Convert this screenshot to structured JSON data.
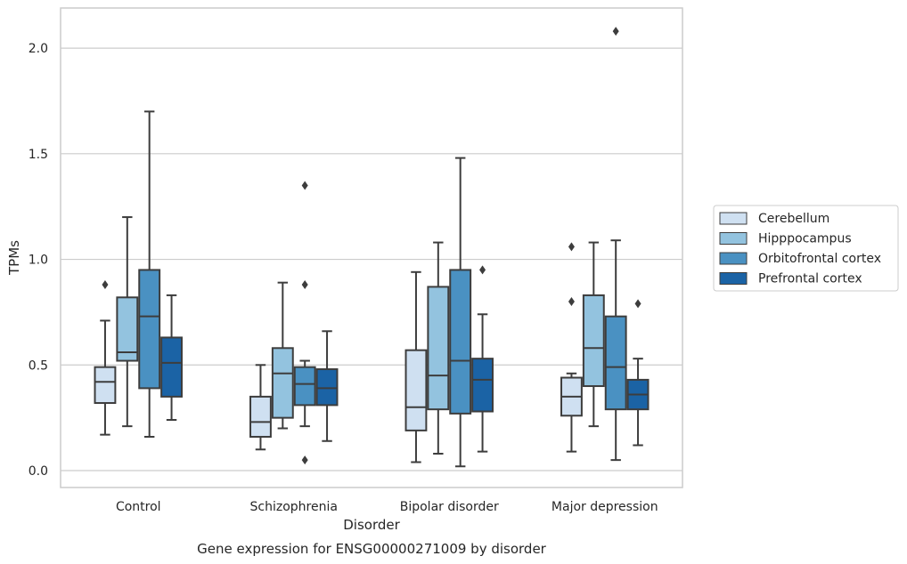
{
  "chart_data": {
    "type": "box",
    "categories": [
      "Control",
      "Schizophrenia",
      "Bipolar disorder",
      "Major depression"
    ],
    "xlabel": "Disorder",
    "ylabel": "TPMs",
    "caption": "Gene expression for ENSG00000271009 by disorder",
    "ylim": [
      -0.08,
      2.19
    ],
    "yticks": [
      0.0,
      0.5,
      1.0,
      1.5,
      2.0
    ],
    "ytick_labels": [
      "0.0",
      "0.5",
      "1.0",
      "1.5",
      "2.0"
    ],
    "grid": "horizontal",
    "legend_position": "right",
    "series": [
      {
        "name": "Cerebellum",
        "color": "#cfe0f1",
        "boxes": [
          {
            "min": 0.17,
            "q1": 0.32,
            "median": 0.42,
            "q3": 0.49,
            "max": 0.71,
            "outliers": [
              0.88
            ]
          },
          {
            "min": 0.1,
            "q1": 0.16,
            "median": 0.23,
            "q3": 0.35,
            "max": 0.5,
            "outliers": []
          },
          {
            "min": 0.04,
            "q1": 0.19,
            "median": 0.3,
            "q3": 0.57,
            "max": 0.94,
            "outliers": []
          },
          {
            "min": 0.09,
            "q1": 0.26,
            "median": 0.35,
            "q3": 0.44,
            "max": 0.46,
            "outliers": [
              0.8,
              1.06
            ]
          }
        ]
      },
      {
        "name": "Hipppocampus",
        "color": "#93c3df",
        "boxes": [
          {
            "min": 0.21,
            "q1": 0.52,
            "median": 0.56,
            "q3": 0.82,
            "max": 1.2,
            "outliers": []
          },
          {
            "min": 0.2,
            "q1": 0.25,
            "median": 0.46,
            "q3": 0.58,
            "max": 0.89,
            "outliers": []
          },
          {
            "min": 0.08,
            "q1": 0.29,
            "median": 0.45,
            "q3": 0.87,
            "max": 1.08,
            "outliers": []
          },
          {
            "min": 0.21,
            "q1": 0.4,
            "median": 0.58,
            "q3": 0.83,
            "max": 1.08,
            "outliers": []
          }
        ]
      },
      {
        "name": "Orbitofrontal cortex",
        "color": "#4a91c2",
        "boxes": [
          {
            "min": 0.16,
            "q1": 0.39,
            "median": 0.73,
            "q3": 0.95,
            "max": 1.7,
            "outliers": []
          },
          {
            "min": 0.21,
            "q1": 0.31,
            "median": 0.41,
            "q3": 0.49,
            "max": 0.52,
            "outliers": [
              0.05,
              0.88,
              1.35
            ]
          },
          {
            "min": 0.02,
            "q1": 0.27,
            "median": 0.52,
            "q3": 0.95,
            "max": 1.48,
            "outliers": []
          },
          {
            "min": 0.05,
            "q1": 0.29,
            "median": 0.49,
            "q3": 0.73,
            "max": 1.09,
            "outliers": [
              2.08
            ]
          }
        ]
      },
      {
        "name": "Prefrontal cortex",
        "color": "#1b63a5",
        "boxes": [
          {
            "min": 0.24,
            "q1": 0.35,
            "median": 0.51,
            "q3": 0.63,
            "max": 0.83,
            "outliers": []
          },
          {
            "min": 0.14,
            "q1": 0.31,
            "median": 0.39,
            "q3": 0.48,
            "max": 0.66,
            "outliers": []
          },
          {
            "min": 0.09,
            "q1": 0.28,
            "median": 0.43,
            "q3": 0.53,
            "max": 0.74,
            "outliers": [
              0.95
            ]
          },
          {
            "min": 0.12,
            "q1": 0.29,
            "median": 0.36,
            "q3": 0.43,
            "max": 0.53,
            "outliers": [
              0.79
            ]
          }
        ]
      }
    ]
  }
}
